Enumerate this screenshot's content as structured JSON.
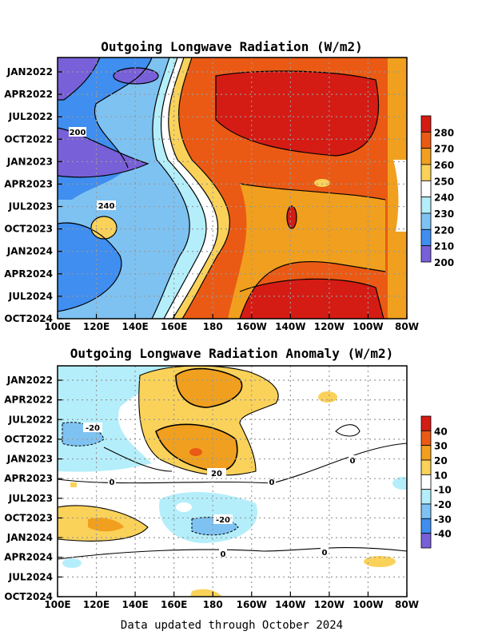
{
  "chart_data": [
    {
      "type": "heatmap",
      "title": "Outgoing Longwave Radiation (W/m2)",
      "x_tick_labels": [
        "100E",
        "120E",
        "140E",
        "160E",
        "180",
        "160W",
        "140W",
        "120W",
        "100W",
        "80W"
      ],
      "y_tick_labels": [
        "JAN2022",
        "APR2022",
        "JUL2022",
        "OCT2022",
        "JAN2023",
        "APR2023",
        "JUL2023",
        "OCT2023",
        "JAN2024",
        "APR2024",
        "JUL2024",
        "OCT2024"
      ],
      "colorbar": {
        "labels": [
          "280",
          "270",
          "260",
          "250",
          "240",
          "230",
          "220",
          "210",
          "200"
        ],
        "colors": [
          "#d41c14",
          "#ea5a14",
          "#f0a01e",
          "#fad25a",
          "#ffffff",
          "#b4eefa",
          "#7ec2f2",
          "#3f8ef0",
          "#7860d8"
        ]
      },
      "contour_labels": [
        "200",
        "240"
      ],
      "grid": true,
      "legend": "right"
    },
    {
      "type": "heatmap",
      "title": "Outgoing Longwave Radiation Anomaly (W/m2)",
      "x_tick_labels": [
        "100E",
        "120E",
        "140E",
        "160E",
        "180",
        "160W",
        "140W",
        "120W",
        "100W",
        "80W"
      ],
      "y_tick_labels": [
        "JAN2022",
        "APR2022",
        "JUL2022",
        "OCT2022",
        "JAN2023",
        "APR2023",
        "JUL2023",
        "OCT2023",
        "JAN2024",
        "APR2024",
        "JUL2024",
        "OCT2024"
      ],
      "colorbar": {
        "labels": [
          "40",
          "30",
          "20",
          "10",
          "-10",
          "-20",
          "-30",
          "-40"
        ],
        "colors": [
          "#d41c14",
          "#ea5a14",
          "#f0a01e",
          "#fad25a",
          "#ffffff",
          "#b4eefa",
          "#7ec2f2",
          "#3f8ef0",
          "#7860d8"
        ]
      },
      "contour_labels": [
        "-20",
        "20",
        "0",
        "0",
        "0",
        "-20",
        "0",
        "0"
      ],
      "grid": true,
      "legend": "right"
    }
  ],
  "footer": "Data updated through October 2024"
}
